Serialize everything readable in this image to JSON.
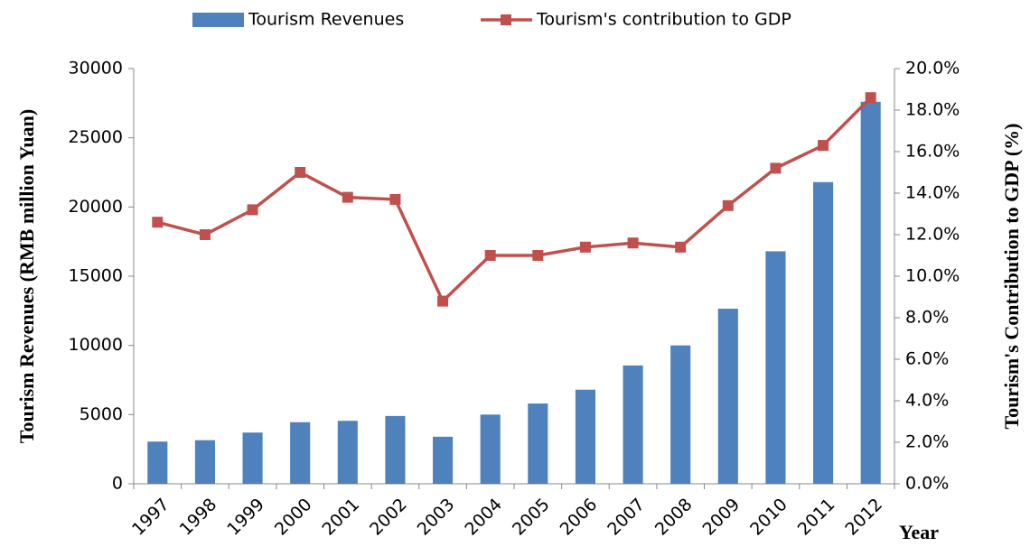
{
  "chart_data": {
    "type": "bar_line",
    "categories": [
      "1997",
      "1998",
      "1999",
      "2000",
      "2001",
      "2002",
      "2003",
      "2004",
      "2005",
      "2006",
      "2007",
      "2008",
      "2009",
      "2010",
      "2011",
      "2012"
    ],
    "series": [
      {
        "name": "Tourism Revenues",
        "type": "bar",
        "color": "#4f81bd",
        "values": [
          3050,
          3150,
          3700,
          4450,
          4550,
          4900,
          3400,
          5000,
          5800,
          6800,
          8550,
          10000,
          12650,
          16800,
          21800,
          27600
        ]
      },
      {
        "name": "Tourism's contribution to GDP",
        "type": "line",
        "axis": "y2",
        "color": "#c0504d",
        "values": [
          12.6,
          12.0,
          13.2,
          15.0,
          13.8,
          13.7,
          8.8,
          11.0,
          11.0,
          11.4,
          11.6,
          11.4,
          13.4,
          15.2,
          16.3,
          18.6
        ]
      }
    ],
    "y_label": "Tourism Revenues (RMB million  Yuan)",
    "y2_label": "Tourism's Contribution to GDP (%)",
    "x_label": "Year",
    "ylim": [
      0,
      30000
    ],
    "yticks": [
      0,
      5000,
      10000,
      15000,
      20000,
      25000,
      30000
    ],
    "y2lim": [
      0,
      20
    ],
    "y2ticks": [
      {
        "value": 0,
        "label": "0.0%"
      },
      {
        "value": 2,
        "label": "2.0%"
      },
      {
        "value": 4,
        "label": "4.0%"
      },
      {
        "value": 6,
        "label": "6.0%"
      },
      {
        "value": 8,
        "label": "8.0%"
      },
      {
        "value": 10,
        "label": "10.0%"
      },
      {
        "value": 12,
        "label": "12.0%"
      },
      {
        "value": 14,
        "label": "14.0%"
      },
      {
        "value": 16,
        "label": "16.0%"
      },
      {
        "value": 18,
        "label": "18.0%"
      },
      {
        "value": 20,
        "label": "20.0%"
      }
    ],
    "grid": false,
    "legend": "top"
  }
}
